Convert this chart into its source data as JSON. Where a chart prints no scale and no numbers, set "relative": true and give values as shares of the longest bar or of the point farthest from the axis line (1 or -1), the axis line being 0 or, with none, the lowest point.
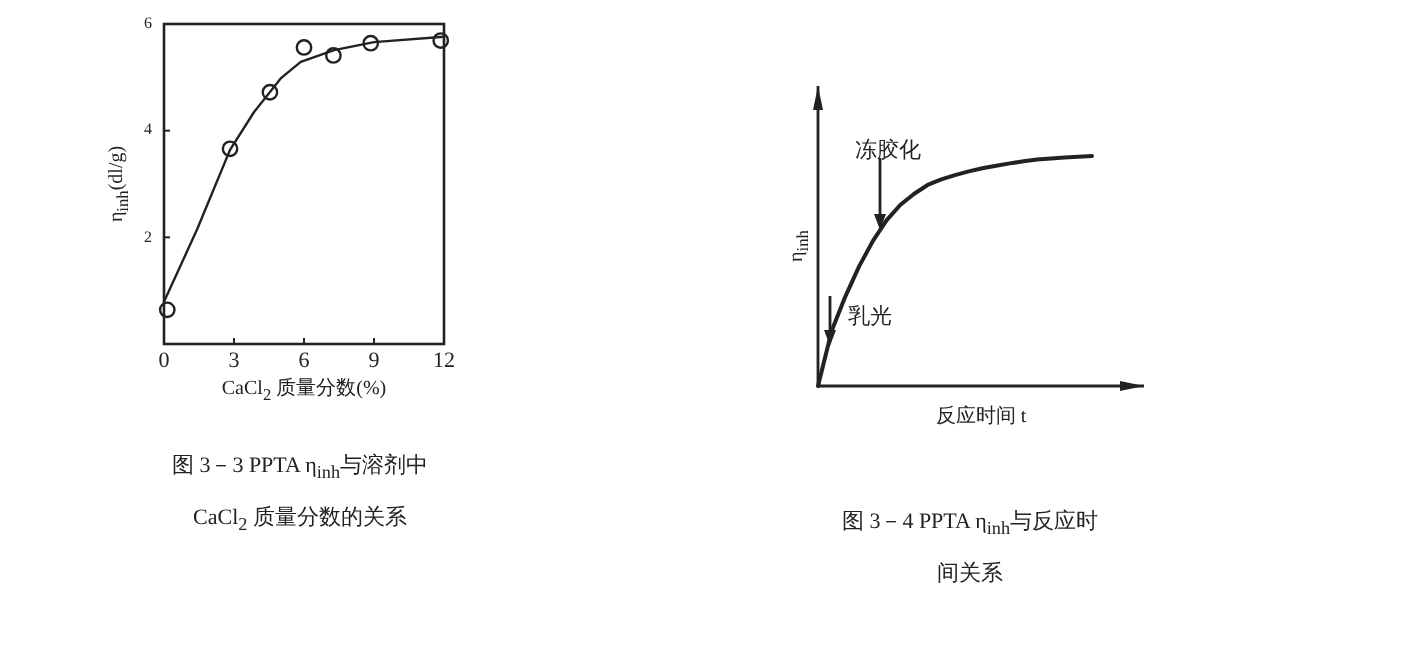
{
  "chart_data": [
    {
      "type": "scatter",
      "title": "图 3－3 PPTA η$_{inh}$与溶剂中 CaCl$_{2}$ 质量分数的关系",
      "xlabel": "CaCl$_{2}$ 质量分数(%)",
      "ylabel": "η$_{inh}$(dl/g)",
      "xlim": [
        0,
        12
      ],
      "ylim": [
        0,
        6
      ],
      "xticks": [
        0,
        3,
        6,
        9,
        12
      ],
      "yticks": [
        2,
        4,
        6
      ],
      "grid": false,
      "series": [
        {
          "type": "line",
          "color": "#222222",
          "marker": "none",
          "x": [
            0,
            1.43,
            2.83,
            3.86,
            5.0,
            5.86,
            7.29,
            9.0,
            12
          ],
          "values": [
            0.79,
            2.16,
            3.64,
            4.35,
            4.98,
            5.29,
            5.51,
            5.66,
            5.76
          ]
        },
        {
          "color": "#222222",
          "marker": "circle",
          "x": [
            0.14,
            2.83,
            4.54,
            6.0,
            7.26,
            8.86,
            11.86
          ],
          "values": [
            0.64,
            3.66,
            4.72,
            5.56,
            5.41,
            5.64,
            5.69
          ]
        }
      ]
    },
    {
      "type": "line",
      "relative": true,
      "title": "图 3－4 PPTA η$_{inh}$与反应时间关系",
      "xlabel": "反应时间 t",
      "ylabel": "η$_{inh}$",
      "color": "#222222",
      "categories": [
        null,
        null,
        null,
        null,
        null,
        null,
        null,
        null,
        null,
        null,
        null,
        null,
        null,
        null,
        null,
        null,
        null,
        null,
        null,
        null,
        null
      ],
      "values": [
        0,
        0.24,
        0.39,
        0.52,
        0.63,
        0.72,
        0.787,
        0.835,
        0.874,
        0.898,
        0.917,
        0.933,
        0.947,
        0.958,
        0.968,
        0.977,
        0.985,
        0.989,
        0.993,
        0.997,
        1
      ],
      "annotations": [
        "冻胶化",
        "乳光"
      ]
    }
  ]
}
